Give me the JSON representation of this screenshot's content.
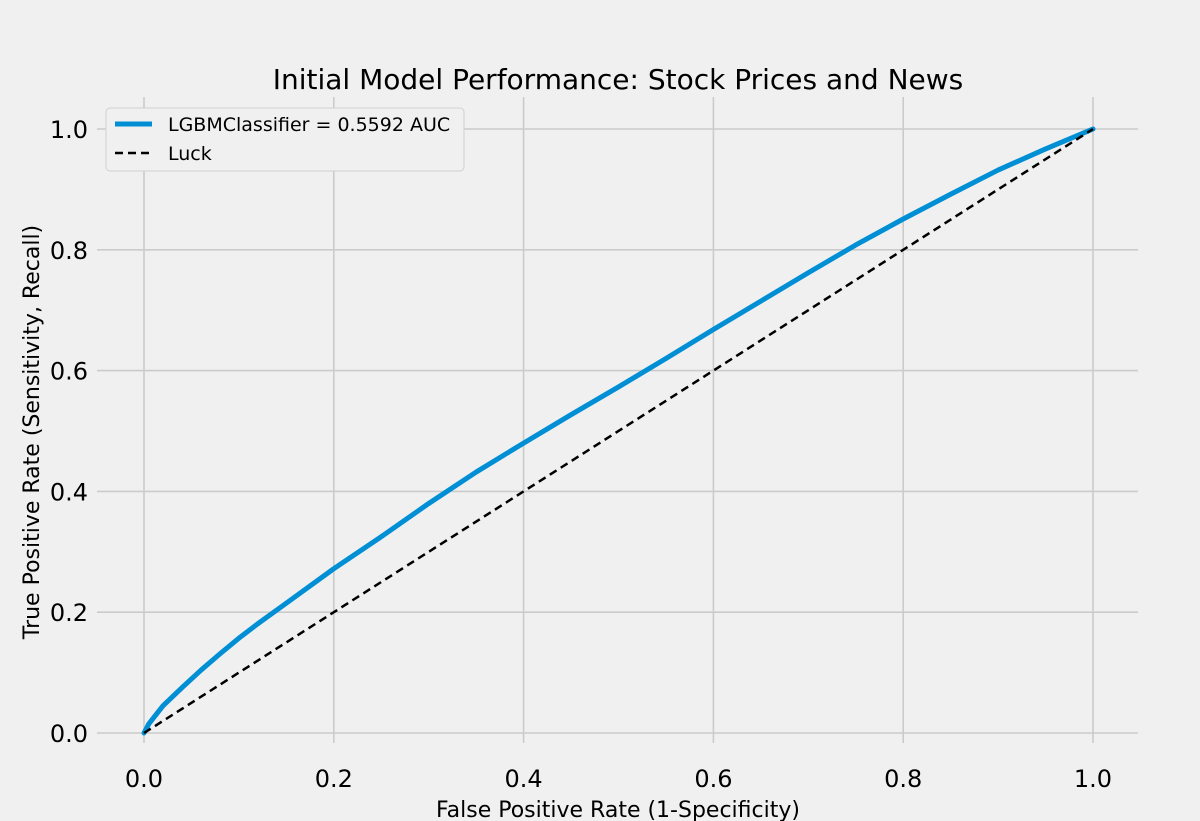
{
  "chart_data": {
    "type": "line",
    "title": "Initial Model Performance: Stock Prices and News",
    "xlabel": "False Positive Rate (1-Specificity)",
    "ylabel": "True Positive Rate (Sensitivity, Recall)",
    "xlim": [
      -0.05,
      1.05
    ],
    "ylim": [
      -0.02,
      1.05
    ],
    "xticks": [
      0.0,
      0.2,
      0.4,
      0.6,
      0.8,
      1.0
    ],
    "yticks": [
      0.0,
      0.2,
      0.4,
      0.6,
      0.8,
      1.0
    ],
    "tick_labels_x": [
      "0.0",
      "0.2",
      "0.4",
      "0.6",
      "0.8",
      "1.0"
    ],
    "tick_labels_y": [
      "0.0",
      "0.2",
      "0.4",
      "0.6",
      "0.8",
      "1.0"
    ],
    "grid": true,
    "legend_position": "top-left",
    "series": [
      {
        "name": "LGBMClassifier = 0.5592 AUC",
        "color": "#008fd5",
        "style": "solid",
        "x": [
          0.0,
          0.005,
          0.02,
          0.04,
          0.06,
          0.08,
          0.1,
          0.12,
          0.15,
          0.2,
          0.25,
          0.3,
          0.35,
          0.4,
          0.45,
          0.5,
          0.55,
          0.6,
          0.65,
          0.7,
          0.75,
          0.8,
          0.85,
          0.9,
          0.95,
          1.0
        ],
        "y": [
          0.0,
          0.015,
          0.045,
          0.075,
          0.104,
          0.131,
          0.157,
          0.181,
          0.215,
          0.272,
          0.325,
          0.38,
          0.432,
          0.48,
          0.527,
          0.573,
          0.62,
          0.668,
          0.715,
          0.762,
          0.808,
          0.851,
          0.892,
          0.932,
          0.967,
          1.0
        ]
      },
      {
        "name": "Luck",
        "color": "#000000",
        "style": "dashed",
        "x": [
          0.0,
          1.0
        ],
        "y": [
          0.0,
          1.0
        ]
      }
    ]
  }
}
